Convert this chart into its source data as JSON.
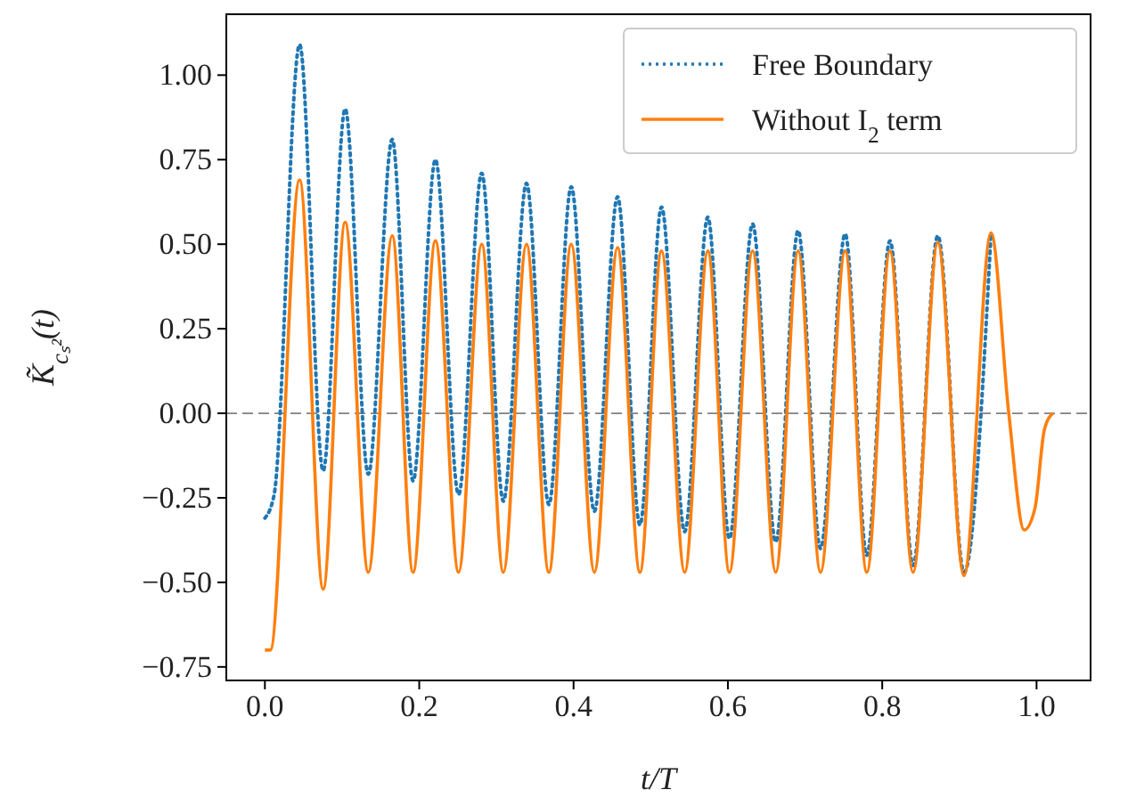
{
  "chart_data": {
    "type": "line",
    "xlabel": "t/T",
    "ylabel": "K̃$_{cₛ²}$(t)",
    "xlim": [
      -0.05,
      1.07
    ],
    "ylim": [
      -0.79,
      1.18
    ],
    "xticks": [
      {
        "value": 0,
        "label": "0.0"
      },
      {
        "value": 0.2,
        "label": "0.2"
      },
      {
        "value": 0.4,
        "label": "0.4"
      },
      {
        "value": 0.6,
        "label": "0.6"
      },
      {
        "value": 0.8,
        "label": "0.8"
      },
      {
        "value": 1,
        "label": "1.0"
      }
    ],
    "yticks": [
      {
        "value": -0.75,
        "label": "−0.75"
      },
      {
        "value": -0.5,
        "label": "−0.50"
      },
      {
        "value": -0.25,
        "label": "−0.25"
      },
      {
        "value": 0,
        "label": "0.00"
      },
      {
        "value": 0.25,
        "label": "0.25"
      },
      {
        "value": 0.5,
        "label": "0.50"
      },
      {
        "value": 0.75,
        "label": "0.75"
      },
      {
        "value": 1,
        "label": "1.00"
      }
    ],
    "grid": false,
    "legend": "top right",
    "marker": "none",
    "ref_lines": [
      {
        "axis": "y",
        "value": 0,
        "label": null,
        "color": "#808080",
        "line_style": "dashed"
      }
    ],
    "series": [
      {
        "name": "Free Boundary",
        "color": "#1f77b4",
        "line_style": "dotted",
        "x": [
          0,
          0.012,
          0.045,
          0.0755,
          0.104,
          0.134,
          0.165,
          0.192,
          0.221,
          0.251,
          0.281,
          0.309,
          0.339,
          0.368,
          0.397,
          0.427,
          0.457,
          0.486,
          0.514,
          0.544,
          0.574,
          0.602,
          0.632,
          0.662,
          0.691,
          0.72,
          0.752,
          0.78,
          0.81,
          0.84,
          0.872,
          0.906,
          0.941
        ],
        "values": [
          -0.31,
          -0.24,
          1.09,
          -0.17,
          0.9,
          -0.18,
          0.81,
          -0.2,
          0.75,
          -0.24,
          0.71,
          -0.26,
          0.68,
          -0.27,
          0.67,
          -0.29,
          0.64,
          -0.33,
          0.61,
          -0.35,
          0.58,
          -0.37,
          0.56,
          -0.38,
          0.54,
          -0.4,
          0.53,
          -0.42,
          0.51,
          -0.45,
          0.525,
          -0.47,
          0.533
        ]
      },
      {
        "name": "Without I$_{2}$ term",
        "color": "#ff7f0e",
        "line_style": "solid",
        "x": [
          0,
          0.007,
          0.045,
          0.0755,
          0.104,
          0.134,
          0.165,
          0.192,
          0.221,
          0.251,
          0.281,
          0.309,
          0.339,
          0.368,
          0.397,
          0.427,
          0.457,
          0.486,
          0.514,
          0.544,
          0.574,
          0.602,
          0.632,
          0.662,
          0.691,
          0.72,
          0.752,
          0.78,
          0.81,
          0.84,
          0.872,
          0.906,
          0.941,
          0.964,
          0.984,
          0.998,
          1.01,
          1.021
        ],
        "values": [
          -0.7,
          -0.7,
          0.69,
          -0.52,
          0.565,
          -0.47,
          0.525,
          -0.47,
          0.51,
          -0.47,
          0.5,
          -0.47,
          0.5,
          -0.47,
          0.5,
          -0.47,
          0.49,
          -0.47,
          0.48,
          -0.47,
          0.48,
          -0.47,
          0.48,
          -0.47,
          0.48,
          -0.47,
          0.48,
          -0.47,
          0.48,
          -0.47,
          0.505,
          -0.48,
          0.533,
          0,
          -0.345,
          -0.28,
          -0.05,
          0
        ]
      }
    ]
  }
}
